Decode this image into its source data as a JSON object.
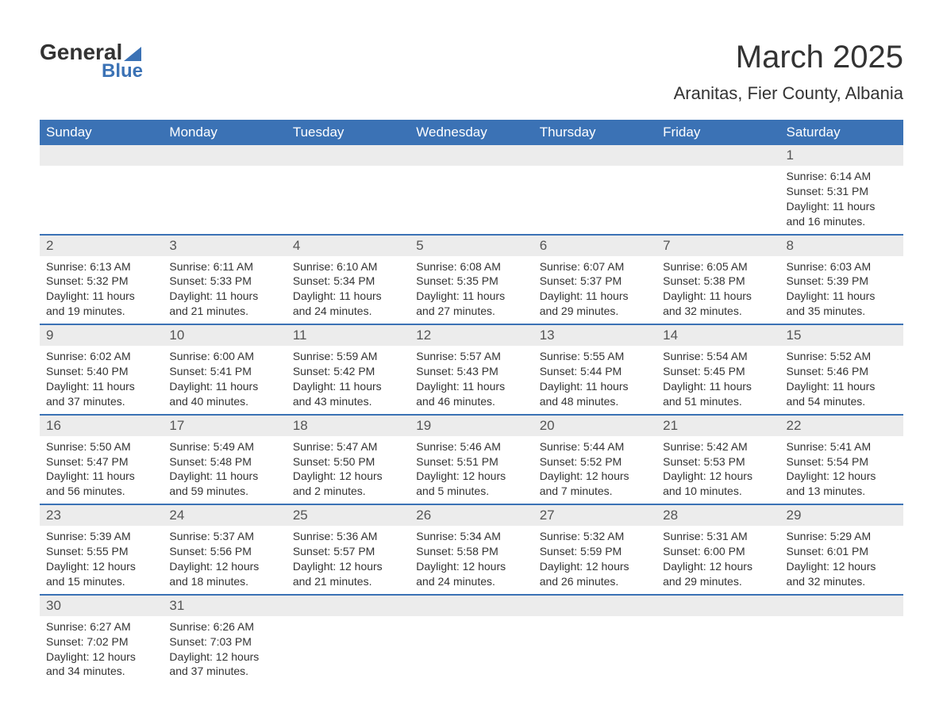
{
  "logo": {
    "word1": "General",
    "word2": "Blue"
  },
  "title": {
    "month": "March 2025",
    "location": "Aranitas, Fier County, Albania"
  },
  "colors": {
    "header_bg": "#3b72b5",
    "header_text": "#ffffff",
    "daynum_bg": "#ececec",
    "row_border": "#3b72b5",
    "text": "#333333",
    "page_bg": "#ffffff"
  },
  "typography": {
    "title_fontsize": 40,
    "location_fontsize": 22,
    "weekday_fontsize": 17,
    "daynum_fontsize": 17,
    "body_fontsize": 14,
    "font_family": "Arial"
  },
  "layout": {
    "columns": 7,
    "rows": 6,
    "cell_lines": 4
  },
  "weekdays": [
    "Sunday",
    "Monday",
    "Tuesday",
    "Wednesday",
    "Thursday",
    "Friday",
    "Saturday"
  ],
  "weeks": [
    [
      {
        "empty": true
      },
      {
        "empty": true
      },
      {
        "empty": true
      },
      {
        "empty": true
      },
      {
        "empty": true
      },
      {
        "empty": true
      },
      {
        "day": "1",
        "sunrise": "Sunrise: 6:14 AM",
        "sunset": "Sunset: 5:31 PM",
        "d1": "Daylight: 11 hours",
        "d2": "and 16 minutes."
      }
    ],
    [
      {
        "day": "2",
        "sunrise": "Sunrise: 6:13 AM",
        "sunset": "Sunset: 5:32 PM",
        "d1": "Daylight: 11 hours",
        "d2": "and 19 minutes."
      },
      {
        "day": "3",
        "sunrise": "Sunrise: 6:11 AM",
        "sunset": "Sunset: 5:33 PM",
        "d1": "Daylight: 11 hours",
        "d2": "and 21 minutes."
      },
      {
        "day": "4",
        "sunrise": "Sunrise: 6:10 AM",
        "sunset": "Sunset: 5:34 PM",
        "d1": "Daylight: 11 hours",
        "d2": "and 24 minutes."
      },
      {
        "day": "5",
        "sunrise": "Sunrise: 6:08 AM",
        "sunset": "Sunset: 5:35 PM",
        "d1": "Daylight: 11 hours",
        "d2": "and 27 minutes."
      },
      {
        "day": "6",
        "sunrise": "Sunrise: 6:07 AM",
        "sunset": "Sunset: 5:37 PM",
        "d1": "Daylight: 11 hours",
        "d2": "and 29 minutes."
      },
      {
        "day": "7",
        "sunrise": "Sunrise: 6:05 AM",
        "sunset": "Sunset: 5:38 PM",
        "d1": "Daylight: 11 hours",
        "d2": "and 32 minutes."
      },
      {
        "day": "8",
        "sunrise": "Sunrise: 6:03 AM",
        "sunset": "Sunset: 5:39 PM",
        "d1": "Daylight: 11 hours",
        "d2": "and 35 minutes."
      }
    ],
    [
      {
        "day": "9",
        "sunrise": "Sunrise: 6:02 AM",
        "sunset": "Sunset: 5:40 PM",
        "d1": "Daylight: 11 hours",
        "d2": "and 37 minutes."
      },
      {
        "day": "10",
        "sunrise": "Sunrise: 6:00 AM",
        "sunset": "Sunset: 5:41 PM",
        "d1": "Daylight: 11 hours",
        "d2": "and 40 minutes."
      },
      {
        "day": "11",
        "sunrise": "Sunrise: 5:59 AM",
        "sunset": "Sunset: 5:42 PM",
        "d1": "Daylight: 11 hours",
        "d2": "and 43 minutes."
      },
      {
        "day": "12",
        "sunrise": "Sunrise: 5:57 AM",
        "sunset": "Sunset: 5:43 PM",
        "d1": "Daylight: 11 hours",
        "d2": "and 46 minutes."
      },
      {
        "day": "13",
        "sunrise": "Sunrise: 5:55 AM",
        "sunset": "Sunset: 5:44 PM",
        "d1": "Daylight: 11 hours",
        "d2": "and 48 minutes."
      },
      {
        "day": "14",
        "sunrise": "Sunrise: 5:54 AM",
        "sunset": "Sunset: 5:45 PM",
        "d1": "Daylight: 11 hours",
        "d2": "and 51 minutes."
      },
      {
        "day": "15",
        "sunrise": "Sunrise: 5:52 AM",
        "sunset": "Sunset: 5:46 PM",
        "d1": "Daylight: 11 hours",
        "d2": "and 54 minutes."
      }
    ],
    [
      {
        "day": "16",
        "sunrise": "Sunrise: 5:50 AM",
        "sunset": "Sunset: 5:47 PM",
        "d1": "Daylight: 11 hours",
        "d2": "and 56 minutes."
      },
      {
        "day": "17",
        "sunrise": "Sunrise: 5:49 AM",
        "sunset": "Sunset: 5:48 PM",
        "d1": "Daylight: 11 hours",
        "d2": "and 59 minutes."
      },
      {
        "day": "18",
        "sunrise": "Sunrise: 5:47 AM",
        "sunset": "Sunset: 5:50 PM",
        "d1": "Daylight: 12 hours",
        "d2": "and 2 minutes."
      },
      {
        "day": "19",
        "sunrise": "Sunrise: 5:46 AM",
        "sunset": "Sunset: 5:51 PM",
        "d1": "Daylight: 12 hours",
        "d2": "and 5 minutes."
      },
      {
        "day": "20",
        "sunrise": "Sunrise: 5:44 AM",
        "sunset": "Sunset: 5:52 PM",
        "d1": "Daylight: 12 hours",
        "d2": "and 7 minutes."
      },
      {
        "day": "21",
        "sunrise": "Sunrise: 5:42 AM",
        "sunset": "Sunset: 5:53 PM",
        "d1": "Daylight: 12 hours",
        "d2": "and 10 minutes."
      },
      {
        "day": "22",
        "sunrise": "Sunrise: 5:41 AM",
        "sunset": "Sunset: 5:54 PM",
        "d1": "Daylight: 12 hours",
        "d2": "and 13 minutes."
      }
    ],
    [
      {
        "day": "23",
        "sunrise": "Sunrise: 5:39 AM",
        "sunset": "Sunset: 5:55 PM",
        "d1": "Daylight: 12 hours",
        "d2": "and 15 minutes."
      },
      {
        "day": "24",
        "sunrise": "Sunrise: 5:37 AM",
        "sunset": "Sunset: 5:56 PM",
        "d1": "Daylight: 12 hours",
        "d2": "and 18 minutes."
      },
      {
        "day": "25",
        "sunrise": "Sunrise: 5:36 AM",
        "sunset": "Sunset: 5:57 PM",
        "d1": "Daylight: 12 hours",
        "d2": "and 21 minutes."
      },
      {
        "day": "26",
        "sunrise": "Sunrise: 5:34 AM",
        "sunset": "Sunset: 5:58 PM",
        "d1": "Daylight: 12 hours",
        "d2": "and 24 minutes."
      },
      {
        "day": "27",
        "sunrise": "Sunrise: 5:32 AM",
        "sunset": "Sunset: 5:59 PM",
        "d1": "Daylight: 12 hours",
        "d2": "and 26 minutes."
      },
      {
        "day": "28",
        "sunrise": "Sunrise: 5:31 AM",
        "sunset": "Sunset: 6:00 PM",
        "d1": "Daylight: 12 hours",
        "d2": "and 29 minutes."
      },
      {
        "day": "29",
        "sunrise": "Sunrise: 5:29 AM",
        "sunset": "Sunset: 6:01 PM",
        "d1": "Daylight: 12 hours",
        "d2": "and 32 minutes."
      }
    ],
    [
      {
        "day": "30",
        "sunrise": "Sunrise: 6:27 AM",
        "sunset": "Sunset: 7:02 PM",
        "d1": "Daylight: 12 hours",
        "d2": "and 34 minutes."
      },
      {
        "day": "31",
        "sunrise": "Sunrise: 6:26 AM",
        "sunset": "Sunset: 7:03 PM",
        "d1": "Daylight: 12 hours",
        "d2": "and 37 minutes."
      },
      {
        "empty": true
      },
      {
        "empty": true
      },
      {
        "empty": true
      },
      {
        "empty": true
      },
      {
        "empty": true
      }
    ]
  ]
}
